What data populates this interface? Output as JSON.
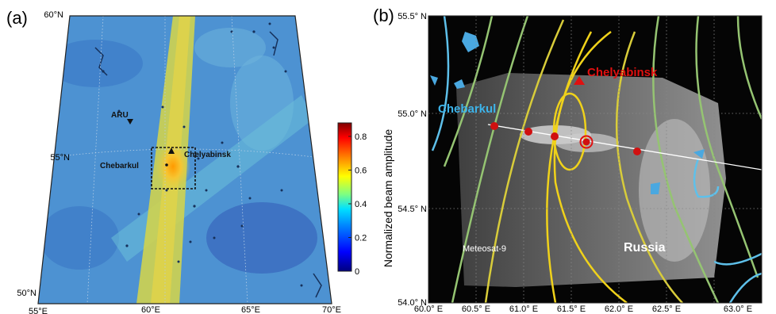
{
  "panel_a": {
    "label": "(a)",
    "lat_labels": [
      "60°N",
      "55°N",
      "50°N"
    ],
    "lon_labels": [
      "55°E",
      "60°E",
      "65°E",
      "70°E"
    ],
    "places": {
      "aru": "ARU",
      "chebarkul": "Chebarkul",
      "chelyabinsk": "Chelyabinsk"
    },
    "colorbar": {
      "ticks": [
        "0",
        "0.2",
        "0.4",
        "0.6",
        "0.8"
      ],
      "tick_values": [
        0,
        0.2,
        0.4,
        0.6,
        0.8
      ],
      "range": [
        0,
        0.88
      ],
      "colormap": [
        "#00007f",
        "#0000ff",
        "#0080ff",
        "#00e0ff",
        "#80ff80",
        "#ffff00",
        "#ff8000",
        "#ff0000",
        "#7f0000"
      ]
    },
    "colors": {
      "background_field": "#4a8fd0",
      "beam_band": "#d7d24a",
      "hotspot": "#f5a21b"
    }
  },
  "panel_b": {
    "label": "(b)",
    "ylabel": "Normalized beam amplitude",
    "lat_labels": [
      "55.5° N",
      "55.0° N",
      "54.5° N",
      "54.0° N"
    ],
    "lon_labels": [
      "60.0° E",
      "60.5° E",
      "61.0° E",
      "61.5° E",
      "62.0° E",
      "62.5° E",
      "63.0° E"
    ],
    "places": {
      "chelyabinsk": "Chelyabinsk",
      "chebarkul": "Chebarkul",
      "russia": "Russia",
      "meteosat": "Meteosat-9"
    },
    "colors": {
      "background": "#050505",
      "water": "#4aa8e0",
      "chelyabinsk": "#e01010",
      "chebarkul": "#3db4ea",
      "trajectory_points": "#d01010"
    }
  }
}
